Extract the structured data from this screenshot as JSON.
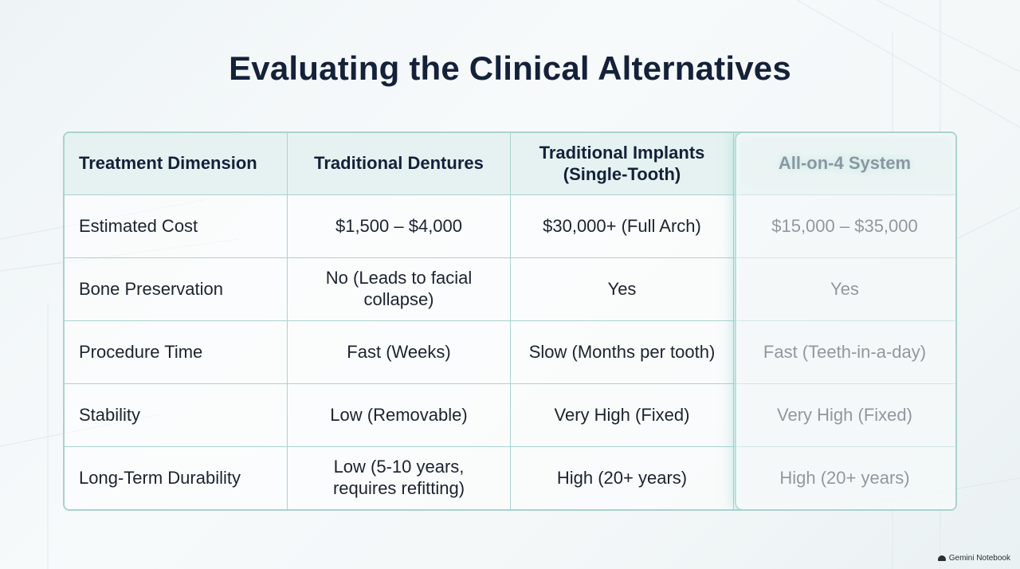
{
  "title": "Evaluating the Clinical Alternatives",
  "table": {
    "headers": [
      "Treatment Dimension",
      "Traditional Dentures",
      "Traditional Implants\n(Single-Tooth)",
      "All-on-4 System"
    ],
    "rows": [
      [
        "Estimated Cost",
        "$1,500 – $4,000",
        "$30,000+ (Full Arch)",
        "$15,000 – $35,000"
      ],
      [
        "Bone Preservation",
        "No (Leads to facial collapse)",
        "Yes",
        "Yes"
      ],
      [
        "Procedure Time",
        "Fast (Weeks)",
        "Slow (Months per tooth)",
        "Fast (Teeth-in-a-day)"
      ],
      [
        "Stability",
        "Low (Removable)",
        "Very High (Fixed)",
        "Very High (Fixed)"
      ],
      [
        "Long-Term Durability",
        "Low (5-10 years, requires refitting)",
        "High (20+ years)",
        "High (20+ years)"
      ]
    ],
    "highlighted_column": "All-on-4 System"
  },
  "watermark": "Gemini Notebook",
  "colors": {
    "title": "#14213a",
    "border": "#a9d3cf",
    "header_bg": "#e2f0ef",
    "highlight_glow": "#76d2c4"
  }
}
